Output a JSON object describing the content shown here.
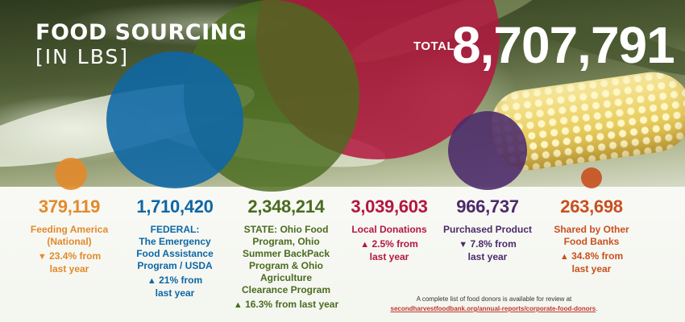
{
  "title": {
    "main": "FOOD SOURCING",
    "sub": "[IN LBS]"
  },
  "total": {
    "label": "TOTAL",
    "value": "8,707,791"
  },
  "chart_data": {
    "type": "bubble",
    "title": "FOOD SOURCING [IN LBS]",
    "total": 8707791,
    "unit": "lbs",
    "categories": [
      {
        "id": "feeding-america",
        "value": 379119,
        "value_text": "379,119",
        "label": "Feeding America (National)",
        "label_lines": [
          "Feeding America",
          "(National)"
        ],
        "change_pct": -23.4,
        "change_arrow": "▼",
        "change_lines": [
          "23.4% from",
          "last year"
        ],
        "color": "#e28a2b"
      },
      {
        "id": "federal",
        "value": 1710420,
        "value_text": "1,710,420",
        "label": "FEDERAL: The Emergency Food Assistance Program / USDA",
        "label_lines": [
          "FEDERAL:",
          "The Emergency",
          "Food Assistance",
          "Program / USDA"
        ],
        "change_pct": 21,
        "change_arrow": "▲",
        "change_lines": [
          "21% from",
          "last year"
        ],
        "color": "#0d67a6"
      },
      {
        "id": "state",
        "value": 2348214,
        "value_text": "2,348,214",
        "label": "STATE: Ohio Food Program, Ohio Summer BackPack Program & Ohio Agriculture Clearance Program",
        "label_lines": [
          "STATE: Ohio Food",
          "Program, Ohio",
          "Summer BackPack",
          "Program & Ohio",
          "Agriculture",
          "Clearance Program"
        ],
        "change_pct": 16.3,
        "change_arrow": "▲",
        "change_lines": [
          "16.3% from last year"
        ],
        "color": "#4a6b1f"
      },
      {
        "id": "local-donations",
        "value": 3039603,
        "value_text": "3,039,603",
        "label": "Local Donations",
        "label_lines": [
          "Local Donations"
        ],
        "change_pct": 2.5,
        "change_arrow": "▲",
        "change_lines": [
          "2.5% from",
          "last year"
        ],
        "color": "#b3173f"
      },
      {
        "id": "purchased-product",
        "value": 966737,
        "value_text": "966,737",
        "label": "Purchased Product",
        "label_lines": [
          "Purchased Product"
        ],
        "change_pct": -7.8,
        "change_arrow": "▼",
        "change_lines": [
          "7.8% from",
          "last year"
        ],
        "color": "#4b2a6b"
      },
      {
        "id": "shared-by-other-food-banks",
        "value": 263698,
        "value_text": "263,698",
        "label": "Shared by Other Food Banks",
        "label_lines": [
          "Shared by Other",
          "Food Banks"
        ],
        "change_pct": 34.8,
        "change_arrow": "▲",
        "change_lines": [
          "34.8% from",
          "last year"
        ],
        "color": "#c8501f"
      }
    ]
  },
  "footnote": {
    "text": "A complete list of food donors is available for review at",
    "link": "secondharvestfoodbank.org/annual-reports/corporate-food-donors",
    "end": "."
  }
}
